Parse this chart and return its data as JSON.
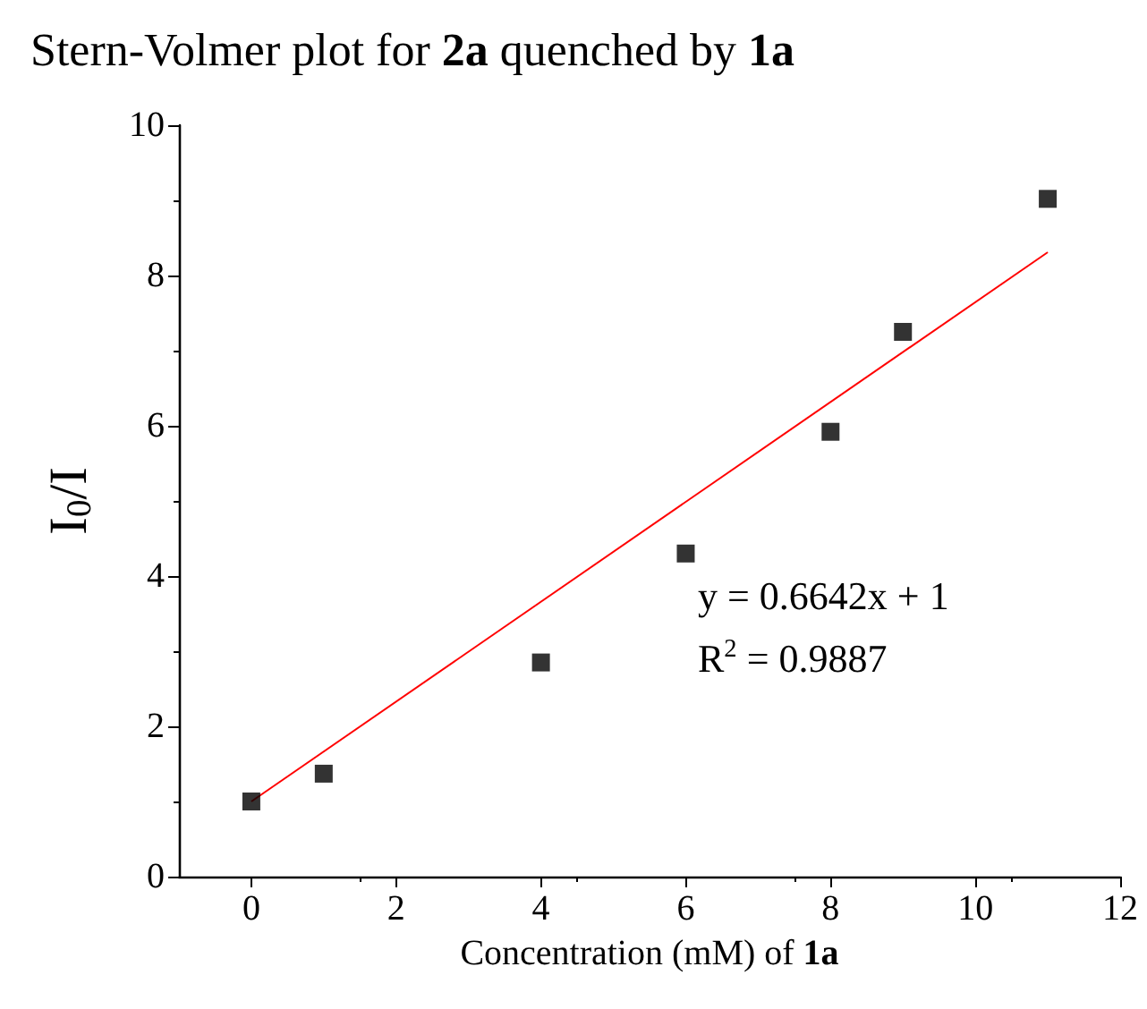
{
  "chart_data": {
    "type": "scatter",
    "title": "Stern-Volmer plot for 2a quenched by 1a",
    "xlabel": "Concentration (mM) of 1a",
    "ylabel": "I$_{0}$/I",
    "annotations": [
      "y = 0.6642x + 1",
      "R$^{2}$ = 0.9887"
    ],
    "xlim": [
      -1,
      12
    ],
    "xticks": [
      0,
      2,
      4,
      6,
      8,
      10,
      12
    ],
    "ylim": [
      0,
      10
    ],
    "yticks": [
      0,
      2,
      4,
      6,
      8,
      10
    ],
    "marker": "square",
    "series": [
      {
        "color": "#000000",
        "x": [
          0,
          1,
          4,
          6,
          8,
          9,
          11
        ],
        "values": [
          1,
          1.37,
          2.85,
          4.3,
          5.92,
          7.25,
          9.02
        ]
      },
      {
        "type": "line",
        "color": "#ff0000",
        "x": [
          0,
          11
        ],
        "values": [
          1,
          8.31
        ],
        "marker": "none"
      }
    ]
  }
}
